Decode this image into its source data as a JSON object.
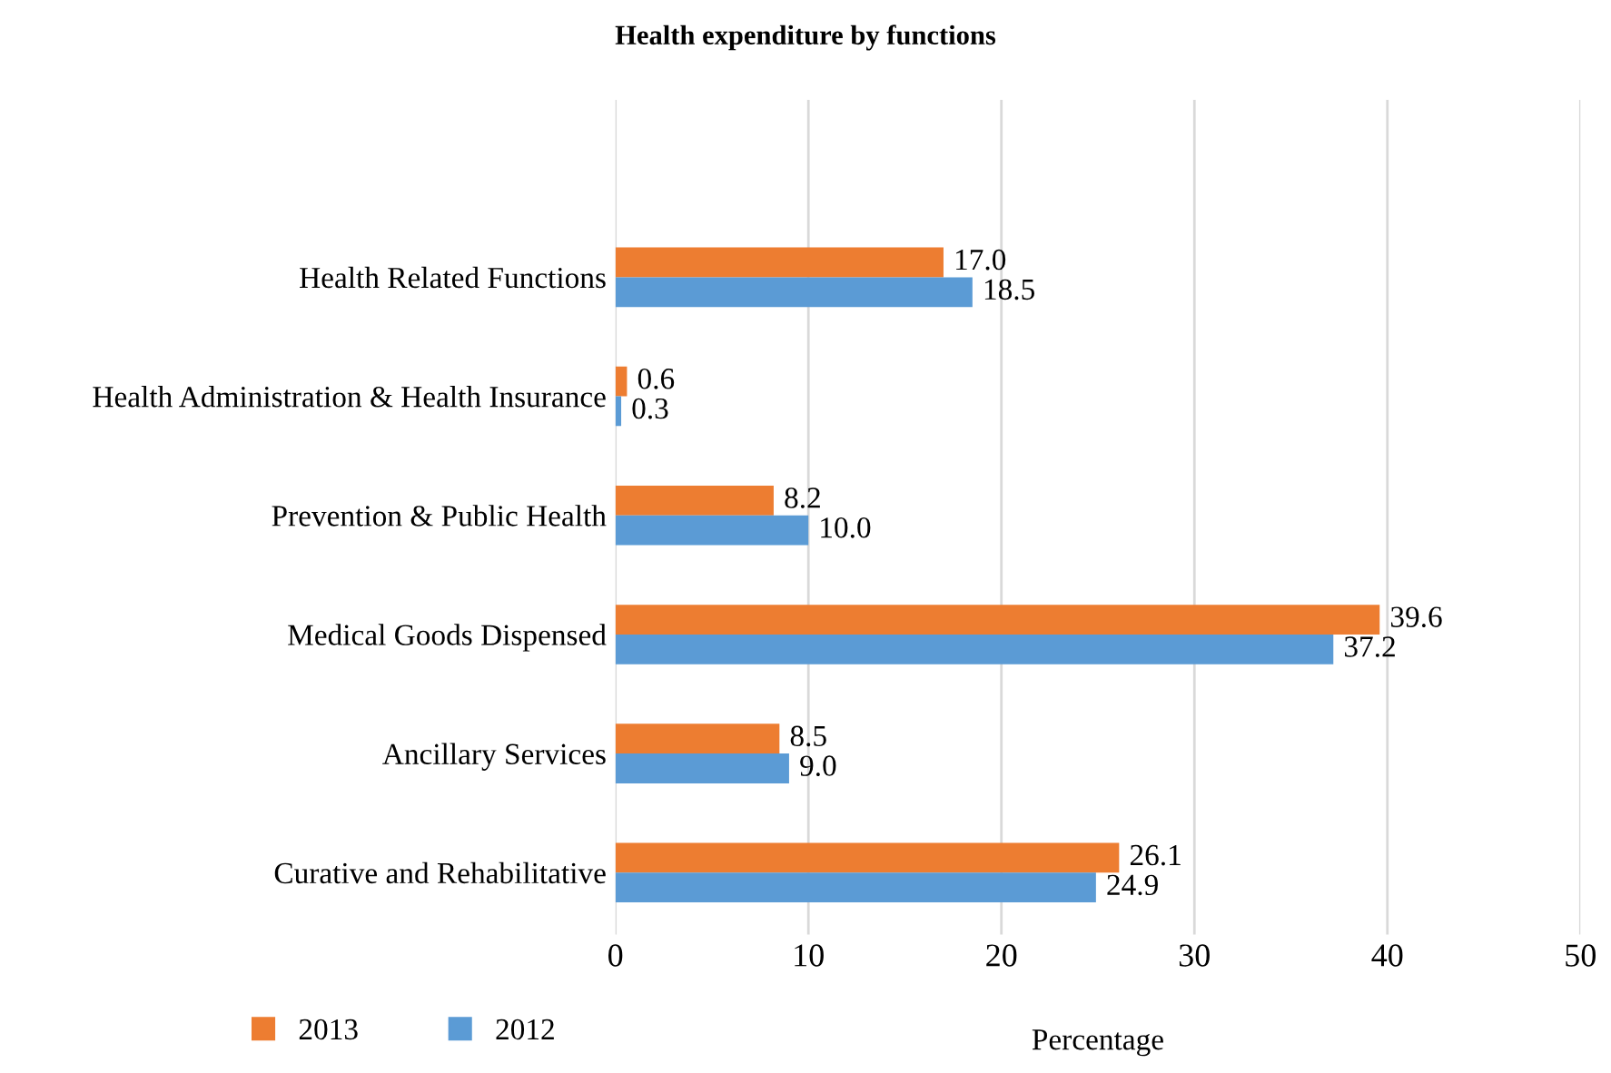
{
  "chart_data": {
    "type": "bar",
    "orientation": "horizontal",
    "title": "Health expenditure by functions",
    "xlabel": "Percentage",
    "categories": [
      "Health Related Functions",
      "Health Administration & Health Insurance",
      "Prevention & Public Health",
      "Medical Goods Dispensed",
      "Ancillary Services",
      "Curative and Rehabilitative"
    ],
    "series": [
      {
        "name": "2013",
        "color": "#ed7d31",
        "values": [
          17.0,
          0.6,
          8.2,
          39.6,
          8.5,
          26.1
        ],
        "value_labels": [
          "17.0",
          "0.6",
          "8.2",
          "39.6",
          "8.5",
          "26.1"
        ]
      },
      {
        "name": "2012",
        "color": "#5b9bd5",
        "values": [
          18.5,
          0.3,
          10.0,
          37.2,
          9.0,
          24.9
        ],
        "value_labels": [
          "18.5",
          "0.3",
          "10.0",
          "37.2",
          "9.0",
          "24.9"
        ]
      }
    ],
    "xlim": [
      0,
      50
    ],
    "xticks": [
      0,
      10,
      20,
      30,
      40,
      50
    ],
    "grid": "x",
    "legend": "bottom left"
  }
}
